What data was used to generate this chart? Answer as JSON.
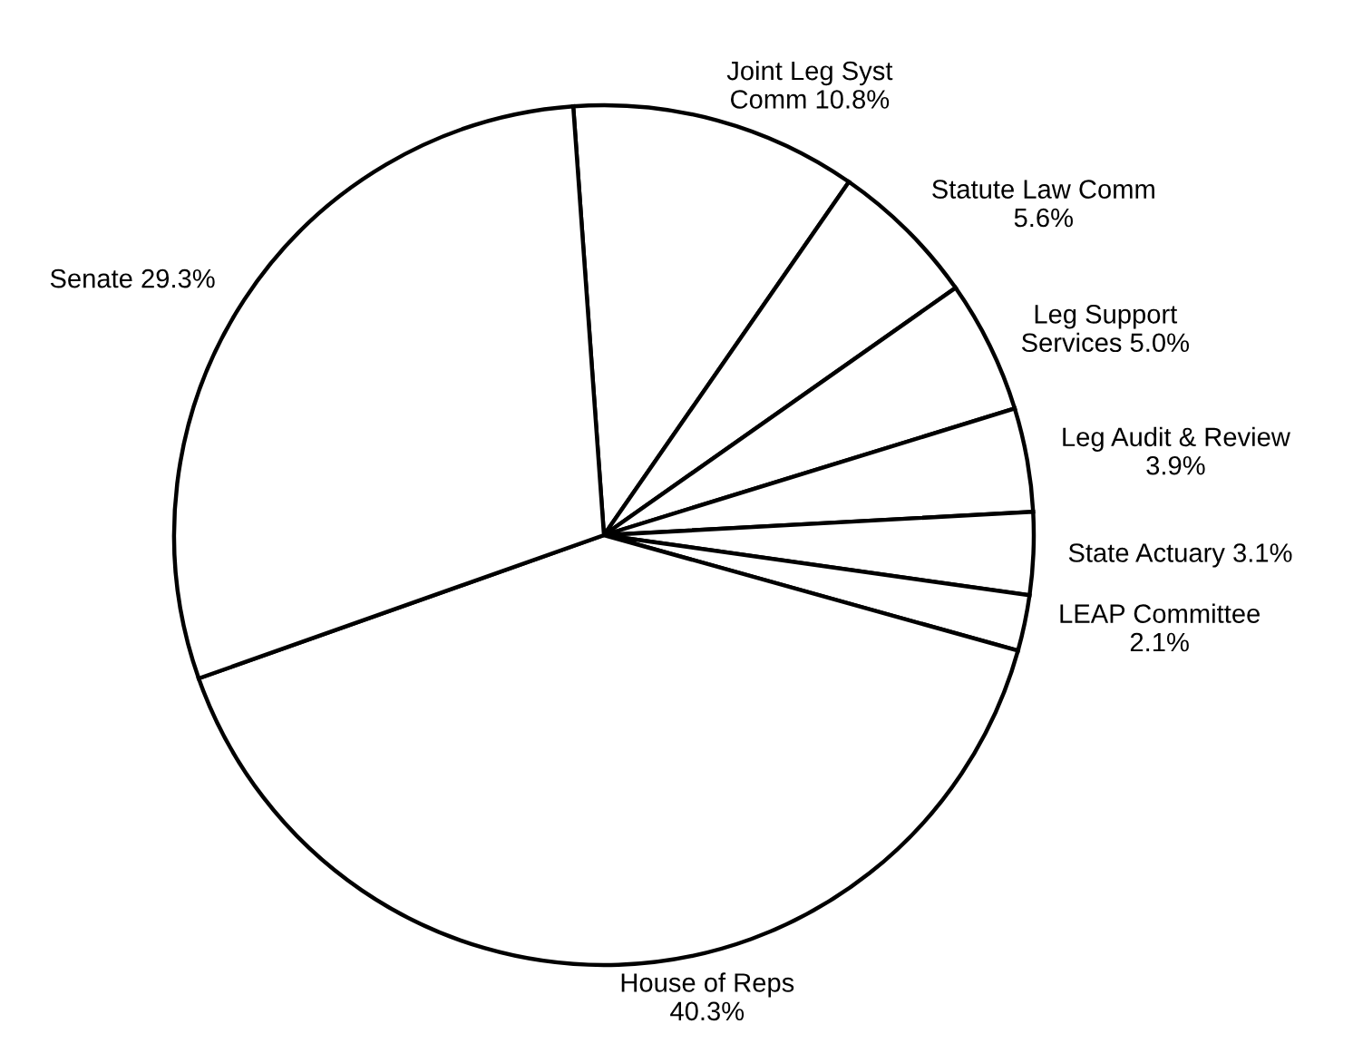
{
  "chart_data": {
    "type": "pie",
    "categories": [
      "Joint Leg Syst\nComm",
      "Statute Law Comm",
      "Leg Support\nServices",
      "Leg Audit & Review",
      "State Actuary",
      "LEAP Committee",
      "House of Reps",
      "Senate"
    ],
    "values": [
      10.8,
      5.6,
      5.0,
      3.9,
      3.1,
      2.1,
      40.3,
      29.3
    ],
    "value_labels": [
      "10.8%",
      "5.6%",
      "5.0%",
      "3.9%",
      "3.1%",
      "2.1%",
      "40.3%",
      "29.3%"
    ],
    "colors": [
      "#ffffff",
      "#ffffff",
      "#ffffff",
      "#ffffff",
      "#ffffff",
      "#ffffff",
      "#ffffff",
      "#ffffff"
    ],
    "legend": false
  }
}
